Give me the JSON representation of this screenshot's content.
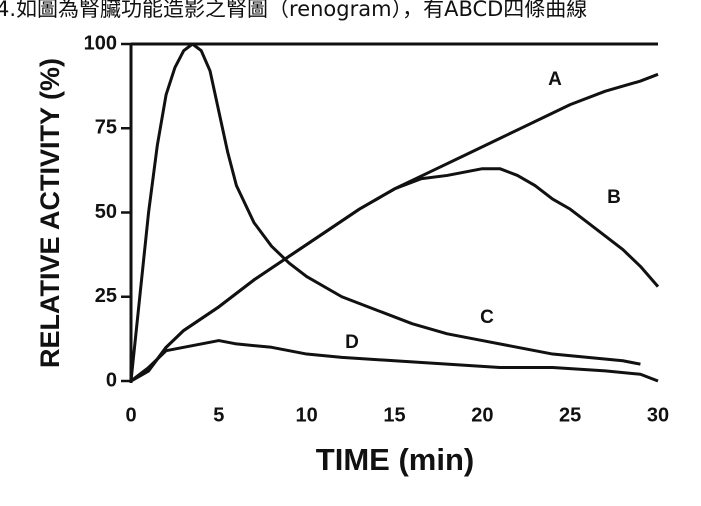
{
  "chart_data": {
    "type": "line",
    "title": "4.如圖為腎臟功能造影之腎圖（renogram），有ABCD四條曲線",
    "x_label": "TIME (min)",
    "y_label": "RELATIVE ACTIVITY (%)",
    "xlim": [
      0,
      30
    ],
    "xticks": [
      0,
      5,
      10,
      15,
      20,
      25,
      30
    ],
    "ylim": [
      0,
      100
    ],
    "yticks": [
      0,
      25,
      50,
      75,
      100
    ],
    "series": [
      {
        "name": "A",
        "color": "#111111",
        "x": [
          0,
          1,
          2,
          3,
          5,
          7,
          9,
          11,
          13,
          15,
          17,
          19,
          21,
          23,
          25,
          27,
          29,
          30
        ],
        "values": [
          0,
          3,
          10,
          15,
          22,
          30,
          37,
          44,
          51,
          57,
          62,
          67,
          72,
          77,
          82,
          86,
          89,
          91
        ]
      },
      {
        "name": "B",
        "color": "#111111",
        "x": [
          0,
          1,
          2,
          3,
          5,
          7,
          9,
          11,
          13,
          15,
          16.5,
          18,
          20,
          21,
          22,
          23,
          24,
          25,
          26,
          27,
          28,
          29,
          30
        ],
        "values": [
          0,
          3,
          10,
          15,
          22,
          30,
          37,
          44,
          51,
          57,
          60,
          61,
          63,
          63,
          61,
          58,
          54,
          51,
          47,
          43,
          39,
          34,
          28
        ]
      },
      {
        "name": "C",
        "color": "#111111",
        "x": [
          0,
          0.5,
          1,
          1.5,
          2,
          2.5,
          3,
          3.5,
          4,
          4.5,
          5,
          5.5,
          6,
          7,
          8,
          9,
          10,
          12,
          14,
          16,
          18,
          20,
          22,
          24,
          26,
          28,
          29
        ],
        "values": [
          0,
          25,
          50,
          70,
          85,
          93,
          98,
          100,
          98,
          92,
          80,
          68,
          58,
          47,
          40,
          35,
          31,
          25,
          21,
          17,
          14,
          12,
          10,
          8,
          7,
          6,
          5
        ]
      },
      {
        "name": "D",
        "color": "#111111",
        "x": [
          0,
          1,
          2,
          3,
          4,
          5,
          6,
          8,
          10,
          12,
          15,
          18,
          21,
          24,
          27,
          29,
          30
        ],
        "values": [
          0,
          4,
          9,
          10,
          11,
          12,
          11,
          10,
          8,
          7,
          6,
          5,
          4,
          4,
          3,
          2,
          0
        ]
      }
    ]
  }
}
